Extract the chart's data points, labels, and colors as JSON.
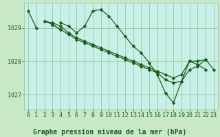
{
  "title": "Graphe pression niveau de la mer (hPa)",
  "background_color": "#c8e8c8",
  "plot_bg_color": "#c8f0e8",
  "grid_color": "#90c090",
  "line_color": "#1a5c1a",
  "hours": [
    0,
    1,
    2,
    3,
    4,
    5,
    6,
    7,
    8,
    9,
    10,
    11,
    12,
    13,
    14,
    15,
    16,
    17,
    18,
    19,
    20,
    21,
    22,
    23
  ],
  "series": [
    [
      1029.5,
      1029.0,
      null,
      null,
      1029.15,
      1029.05,
      1028.85,
      1029.05,
      1029.5,
      1029.55,
      1029.35,
      1029.05,
      1028.75,
      1028.45,
      1028.25,
      1027.95,
      1027.6,
      1027.05,
      1026.75,
      1027.4,
      1028.0,
      1028.0,
      1028.05,
      null
    ],
    [
      null,
      null,
      1029.2,
      1029.15,
      1029.05,
      1028.85,
      1028.7,
      1028.6,
      1028.5,
      1028.4,
      1028.3,
      1028.2,
      1028.1,
      1028.0,
      1027.9,
      1027.8,
      1027.7,
      1027.6,
      1027.5,
      1027.6,
      1028.0,
      1027.9,
      1027.75,
      null
    ],
    [
      null,
      null,
      1029.2,
      1029.1,
      1028.95,
      1028.8,
      1028.65,
      1028.55,
      1028.45,
      1028.35,
      1028.25,
      1028.15,
      1028.05,
      1027.95,
      1027.85,
      1027.75,
      1027.65,
      1027.45,
      1027.35,
      1027.4,
      1027.75,
      1027.85,
      1028.05,
      1027.75
    ],
    [
      null,
      null,
      null,
      1029.1,
      1028.95,
      null,
      null,
      null,
      null,
      null,
      null,
      null,
      null,
      null,
      null,
      null,
      null,
      null,
      null,
      null,
      null,
      null,
      null,
      null
    ]
  ],
  "ylim": [
    1026.55,
    1029.75
  ],
  "yticks": [
    1027,
    1028,
    1029
  ],
  "xlim": [
    -0.5,
    23.5
  ],
  "xticks": [
    0,
    1,
    2,
    3,
    4,
    5,
    6,
    7,
    8,
    9,
    10,
    11,
    12,
    13,
    14,
    15,
    16,
    17,
    18,
    19,
    20,
    21,
    22,
    23
  ],
  "title_fontsize": 7,
  "tick_fontsize": 6,
  "marker_size": 2.5,
  "line_width": 0.9
}
